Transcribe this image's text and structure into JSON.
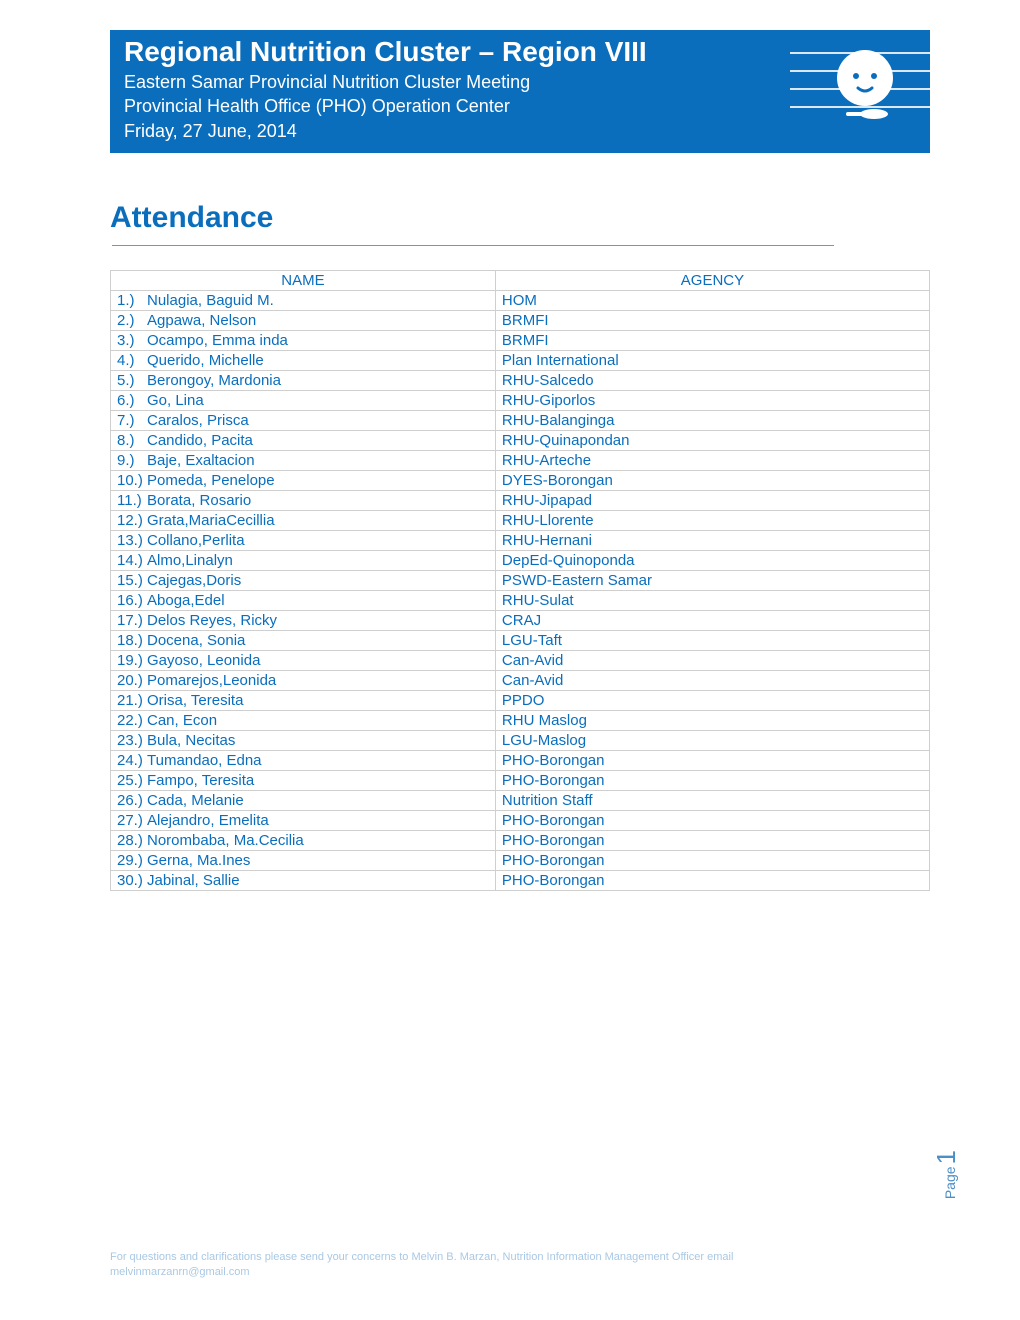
{
  "header": {
    "title": "Regional Nutrition Cluster – Region VIII",
    "line1": "Eastern Samar Provincial Nutrition Cluster Meeting",
    "line2": "Provincial Health Office (PHO) Operation Center",
    "line3": "Friday, 27 June, 2014",
    "banner_color": "#0a6ebd",
    "text_color": "#ffffff"
  },
  "section_heading": "Attendance",
  "table": {
    "columns": [
      "NAME",
      "AGENCY"
    ],
    "rows": [
      {
        "n": "1.)",
        "name": "Nulagia, Baguid M.",
        "agency": "HOM"
      },
      {
        "n": "2.)",
        "name": "Agpawa, Nelson",
        "agency": "BRMFI"
      },
      {
        "n": "3.)",
        "name": "Ocampo, Emma inda",
        "agency": "BRMFI"
      },
      {
        "n": "4.)",
        "name": "Querido, Michelle",
        "agency": "Plan International"
      },
      {
        "n": "5.)",
        "name": "Berongoy, Mardonia",
        "agency": "RHU-Salcedo"
      },
      {
        "n": "6.)",
        "name": "Go, Lina",
        "agency": "RHU-Giporlos"
      },
      {
        "n": "7.)",
        "name": "Caralos, Prisca",
        "agency": "RHU-Balanginga"
      },
      {
        "n": "8.)",
        "name": "Candido, Pacita",
        "agency": "RHU-Quinapondan"
      },
      {
        "n": "9.)",
        "name": "Baje, Exaltacion",
        "agency": "RHU-Arteche"
      },
      {
        "n": "10.)",
        "name": "Pomeda, Penelope",
        "agency": "DYES-Borongan"
      },
      {
        "n": "11.)",
        "name": "Borata, Rosario",
        "agency": "RHU-Jipapad"
      },
      {
        "n": "12.)",
        "name": "Grata,MariaCecillia",
        "agency": "RHU-Llorente"
      },
      {
        "n": "13.)",
        "name": "Collano,Perlita",
        "agency": "RHU-Hernani"
      },
      {
        "n": "14.)",
        "name": "Almo,Linalyn",
        "agency": "DepEd-Quinoponda"
      },
      {
        "n": "15.)",
        "name": "Cajegas,Doris",
        "agency": "PSWD-Eastern Samar"
      },
      {
        "n": "16.)",
        "name": "Aboga,Edel",
        "agency": "RHU-Sulat"
      },
      {
        "n": "17.)",
        "name": "Delos Reyes, Ricky",
        "agency": "CRAJ"
      },
      {
        "n": "18.)",
        "name": "Docena, Sonia",
        "agency": "LGU-Taft"
      },
      {
        "n": "19.)",
        "name": "Gayoso, Leonida",
        "agency": "Can-Avid"
      },
      {
        "n": "20.)",
        "name": "Pomarejos,Leonida",
        "agency": "Can-Avid"
      },
      {
        "n": "21.)",
        "name": "Orisa, Teresita",
        "agency": "PPDO"
      },
      {
        "n": "22.)",
        "name": "Can, Econ",
        "agency": "RHU Maslog"
      },
      {
        "n": "23.)",
        "name": "Bula, Necitas",
        "agency": "LGU-Maslog"
      },
      {
        "n": "24.)",
        "name": "Tumandao, Edna",
        "agency": "PHO-Borongan"
      },
      {
        "n": "25.)",
        "name": "Fampo, Teresita",
        "agency": "PHO-Borongan"
      },
      {
        "n": "26.)",
        "name": "Cada, Melanie",
        "agency": "Nutrition Staff"
      },
      {
        "n": "27.)",
        "name": "Alejandro, Emelita",
        "agency": "PHO-Borongan"
      },
      {
        "n": "28.)",
        "name": "Norombaba, Ma.Cecilia",
        "agency": "PHO-Borongan"
      },
      {
        "n": "29.)",
        "name": "Gerna, Ma.Ines",
        "agency": "PHO-Borongan"
      },
      {
        "n": "30.)",
        "name": "Jabinal, Sallie",
        "agency": "PHO-Borongan"
      }
    ],
    "text_color": "#0a6ebd",
    "border_color": "#cfcfcf",
    "fontsize": 15,
    "col_widths": [
      "47%",
      "53%"
    ]
  },
  "footer": {
    "text": "For questions and clarifications please send your concerns to Melvin B. Marzan, Nutrition Information Management Officer email melvinmarzanrn@gmail.com",
    "color": "#a9c8e4"
  },
  "page_number": {
    "label": "Page",
    "value": "1",
    "color": "#4b8fc9"
  },
  "colors": {
    "primary": "#0a6ebd",
    "white": "#ffffff"
  }
}
